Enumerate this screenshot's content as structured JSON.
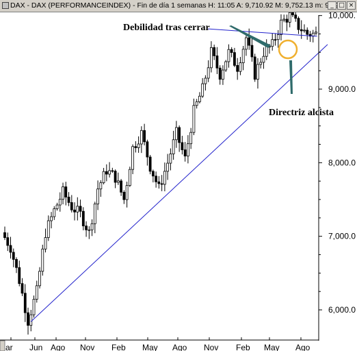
{
  "window": {
    "title": "DAX - DAX (PERFORMANCEINDEX) - Fin de día 1 semanas  H: 11:05  A: 9,710.92  M: 9,752.13  m: 9,691",
    "buttons": {
      "minimize": "_",
      "maximize": "□",
      "close": "×"
    }
  },
  "chart_data": {
    "type": "candlestick",
    "title": "DAX - DAX (PERFORMANCEINDEX) - Fin de día 1 semanas",
    "x_tick_labels": [
      "ar",
      "Jun",
      "Ago",
      "Nov",
      "Feb",
      "May",
      "Ago",
      "Nov",
      "Feb",
      "May",
      "Ago"
    ],
    "y_tick_labels": [
      "6,000.0",
      "7,000.0",
      "8,000.0",
      "9,000.0",
      "10,000."
    ],
    "y_ticks": [
      6000,
      7000,
      8000,
      9000,
      10000
    ],
    "ylim": [
      5620,
      10400
    ],
    "annotations": {
      "weakness": "Debilidad tras cerrar",
      "trendline": "Directriz alcista"
    },
    "trendline": {
      "from": {
        "week": 9,
        "value": 5840
      },
      "to": {
        "week": 111,
        "value": 9700
      }
    },
    "resistance_line": {
      "from": {
        "week": 84,
        "value": 9800
      },
      "to": {
        "week": 105,
        "value": 9680
      }
    },
    "colors": {
      "trendline": "#2222cc",
      "annotation_line": "#2f6b6b",
      "circle": "#f0b030",
      "candles": "#000000",
      "axis": "#000000"
    },
    "anchors": [
      [
        0,
        7050
      ],
      [
        3,
        6850
      ],
      [
        6,
        6400
      ],
      [
        9,
        5850
      ],
      [
        12,
        6250
      ],
      [
        15,
        7050
      ],
      [
        18,
        7350
      ],
      [
        21,
        7600
      ],
      [
        24,
        7400
      ],
      [
        27,
        7300
      ],
      [
        30,
        7050
      ],
      [
        33,
        7650
      ],
      [
        36,
        7900
      ],
      [
        39,
        7800
      ],
      [
        42,
        7500
      ],
      [
        45,
        8200
      ],
      [
        48,
        8400
      ],
      [
        51,
        7950
      ],
      [
        54,
        7650
      ],
      [
        57,
        8000
      ],
      [
        60,
        8400
      ],
      [
        63,
        8050
      ],
      [
        66,
        8700
      ],
      [
        69,
        9000
      ],
      [
        72,
        9500
      ],
      [
        75,
        9200
      ],
      [
        78,
        9500
      ],
      [
        81,
        9300
      ],
      [
        84,
        9700
      ],
      [
        87,
        9200
      ],
      [
        90,
        9500
      ],
      [
        93,
        9600
      ],
      [
        96,
        9900
      ],
      [
        99,
        10000
      ],
      [
        102,
        9850
      ],
      [
        105,
        9750
      ]
    ]
  }
}
